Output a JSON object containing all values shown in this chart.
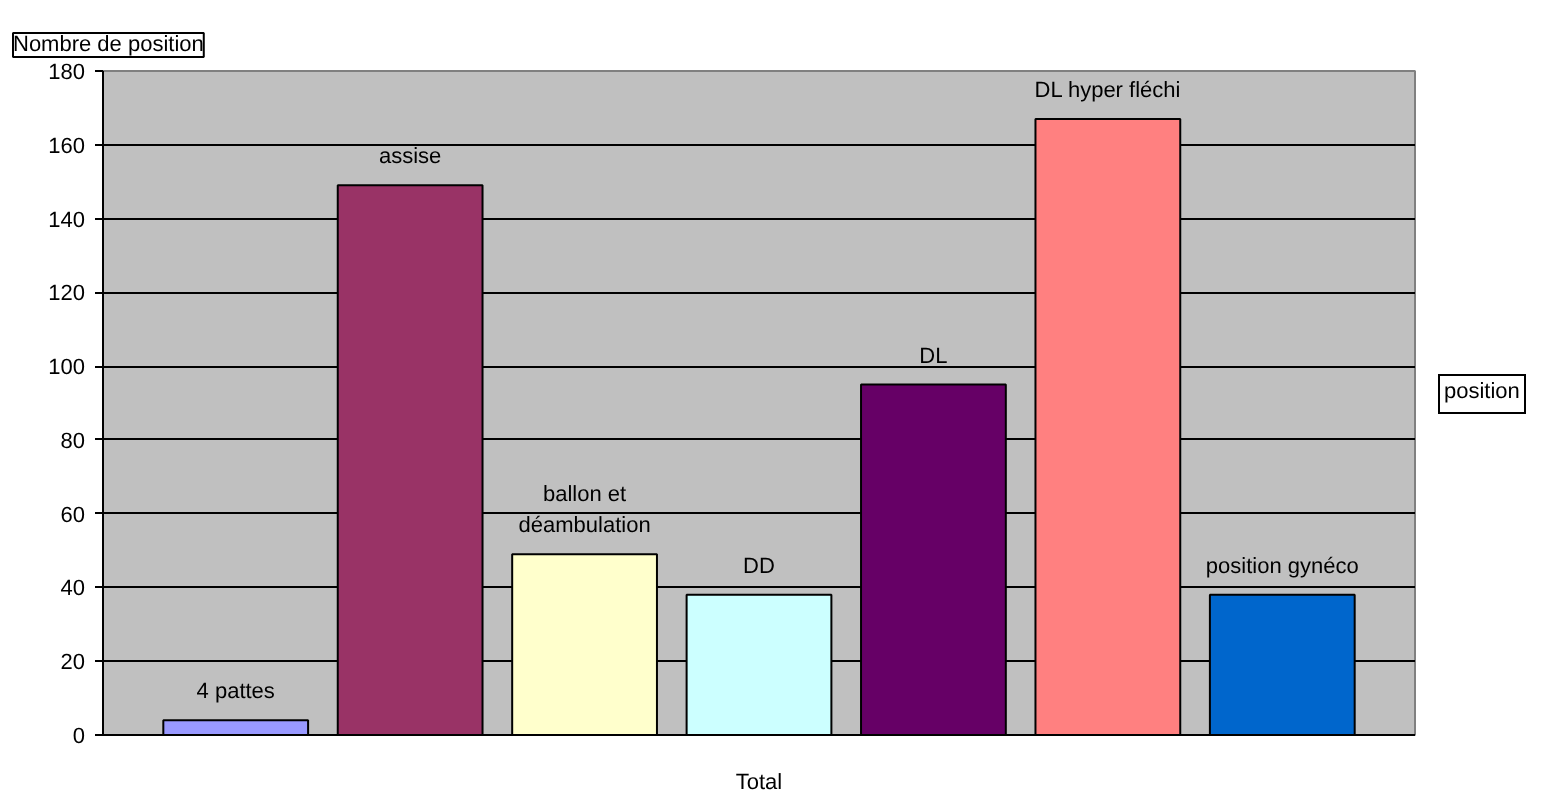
{
  "chart_data": {
    "type": "bar",
    "ylabel": "Nombre de position",
    "xlabel": null,
    "legend_title": "position",
    "categories": [
      "Total"
    ],
    "series": [
      {
        "name": "4 pattes",
        "color": "#9999ff",
        "values": [
          4
        ]
      },
      {
        "name": "assise",
        "color": "#993366",
        "values": [
          149
        ]
      },
      {
        "name": "ballon et déambulation",
        "color": "#ffffcc",
        "values": [
          49
        ]
      },
      {
        "name": "DD",
        "color": "#ccffff",
        "values": [
          38
        ]
      },
      {
        "name": "DL",
        "color": "#660066",
        "values": [
          95
        ]
      },
      {
        "name": "DL hyper fléchi",
        "color": "#ff8080",
        "values": [
          167
        ]
      },
      {
        "name": "position gynéco",
        "color": "#0066cc",
        "values": [
          38
        ]
      }
    ],
    "ylim": [
      0,
      180
    ],
    "yticks": [
      0,
      20,
      40,
      60,
      80,
      100,
      120,
      140,
      160,
      180
    ],
    "grid": "y",
    "legend": false
  }
}
